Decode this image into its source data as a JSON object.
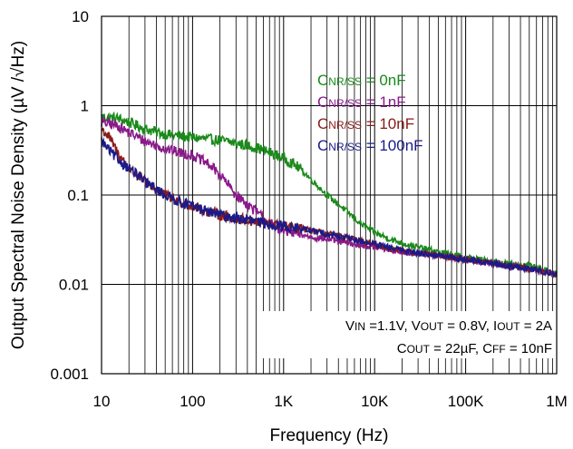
{
  "chart_data": {
    "type": "line",
    "title": "",
    "xlabel": "Frequency (Hz)",
    "ylabel": "Output Spectral Noise Density (µV /√Hz)",
    "x_scale": "log",
    "y_scale": "log",
    "xlim": [
      10,
      1000000
    ],
    "ylim": [
      0.001,
      10
    ],
    "grid": true,
    "legend_position": "top-right",
    "x_ticks": [
      {
        "value": 10,
        "label": "10"
      },
      {
        "value": 100,
        "label": "100"
      },
      {
        "value": 1000,
        "label": "1K"
      },
      {
        "value": 10000,
        "label": "10K"
      },
      {
        "value": 100000,
        "label": "100K"
      },
      {
        "value": 1000000,
        "label": "1M"
      }
    ],
    "y_ticks": [
      {
        "value": 10,
        "label": "10"
      },
      {
        "value": 1,
        "label": "1"
      },
      {
        "value": 0.1,
        "label": "0.1"
      },
      {
        "value": 0.01,
        "label": "0.01"
      },
      {
        "value": 0.001,
        "label": "0.001"
      }
    ],
    "series": [
      {
        "name": "CNR/SS = 0nF",
        "name_main": "C",
        "name_sub": "NR/SS",
        "name_rest": " = 0nF",
        "color": "#1a8a1a",
        "x": [
          10,
          15,
          20,
          30,
          50,
          80,
          100,
          150,
          200,
          300,
          500,
          700,
          1000,
          1500,
          2000,
          3000,
          5000,
          7000,
          10000,
          15000,
          20000,
          30000,
          50000,
          100000,
          200000,
          500000,
          1000000
        ],
        "y": [
          0.75,
          0.72,
          0.65,
          0.55,
          0.48,
          0.45,
          0.44,
          0.42,
          0.41,
          0.38,
          0.34,
          0.3,
          0.26,
          0.2,
          0.15,
          0.1,
          0.065,
          0.048,
          0.038,
          0.032,
          0.029,
          0.026,
          0.023,
          0.02,
          0.018,
          0.016,
          0.013
        ]
      },
      {
        "name": "CNR/SS = 1nF",
        "name_main": "C",
        "name_sub": "NR/SS",
        "name_rest": " = 1nF",
        "color": "#8a1a8a",
        "x": [
          10,
          15,
          20,
          30,
          50,
          70,
          100,
          150,
          200,
          300,
          500,
          700,
          1000,
          1500,
          2000,
          3000,
          5000,
          10000,
          20000,
          50000,
          100000,
          200000,
          500000,
          1000000
        ],
        "y": [
          0.65,
          0.6,
          0.5,
          0.4,
          0.33,
          0.3,
          0.28,
          0.22,
          0.17,
          0.1,
          0.065,
          0.048,
          0.04,
          0.036,
          0.034,
          0.032,
          0.029,
          0.026,
          0.023,
          0.021,
          0.019,
          0.017,
          0.015,
          0.013
        ]
      },
      {
        "name": "CNR/SS = 10nF",
        "name_main": "C",
        "name_sub": "NR/SS",
        "name_rest": " = 10nF",
        "color": "#8a1a1a",
        "x": [
          10,
          12,
          15,
          20,
          30,
          50,
          70,
          100,
          150,
          200,
          300,
          500,
          700,
          1000,
          2000,
          5000,
          10000,
          20000,
          50000,
          100000,
          200000,
          500000,
          1000000
        ],
        "y": [
          0.55,
          0.45,
          0.3,
          0.2,
          0.14,
          0.1,
          0.085,
          0.075,
          0.065,
          0.06,
          0.055,
          0.05,
          0.047,
          0.045,
          0.04,
          0.033,
          0.028,
          0.024,
          0.021,
          0.019,
          0.017,
          0.015,
          0.013
        ]
      },
      {
        "name": "CNR/SS = 100nF",
        "name_main": "C",
        "name_sub": "NR/SS",
        "name_rest": " = 100nF",
        "color": "#1a1a8a",
        "x": [
          10,
          12,
          15,
          20,
          30,
          50,
          70,
          100,
          150,
          200,
          300,
          500,
          700,
          1000,
          2000,
          5000,
          10000,
          20000,
          50000,
          100000,
          200000,
          500000,
          1000000
        ],
        "y": [
          0.4,
          0.32,
          0.25,
          0.2,
          0.14,
          0.1,
          0.085,
          0.075,
          0.065,
          0.06,
          0.055,
          0.05,
          0.047,
          0.045,
          0.04,
          0.033,
          0.028,
          0.024,
          0.021,
          0.019,
          0.017,
          0.015,
          0.013
        ]
      }
    ],
    "conditions": {
      "line1_parts": [
        {
          "t": "V",
          "s": false
        },
        {
          "t": "IN",
          "s": true
        },
        {
          "t": " =1.1V, V",
          "s": false
        },
        {
          "t": "OUT",
          "s": true
        },
        {
          "t": " = 0.8V, I",
          "s": false
        },
        {
          "t": "OUT",
          "s": true
        },
        {
          "t": " = 2A",
          "s": false
        }
      ],
      "line2_parts": [
        {
          "t": "C",
          "s": false
        },
        {
          "t": "OUT",
          "s": true
        },
        {
          "t": " = 22µF, C",
          "s": false
        },
        {
          "t": "FF",
          "s": true
        },
        {
          "t": " = 10nF",
          "s": false
        }
      ]
    }
  }
}
